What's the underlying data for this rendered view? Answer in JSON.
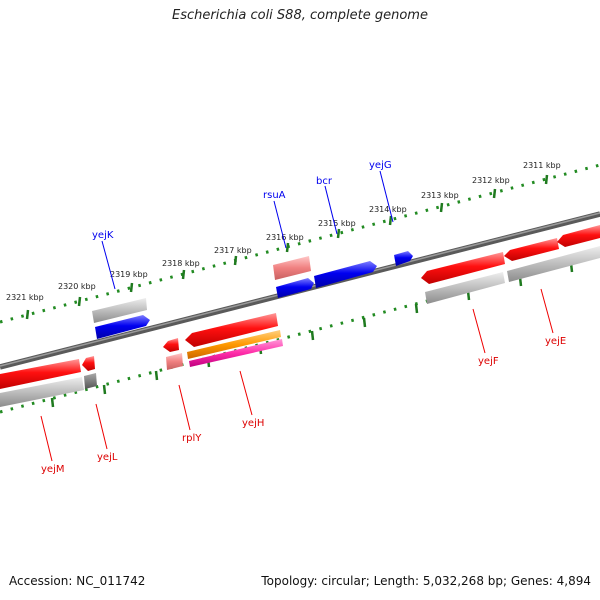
{
  "title": "Escherichia coli S88, complete genome",
  "footer": {
    "accession": "Accession: NC_011742",
    "summary": "Topology: circular; Length: 5,032,268 bp; Genes: 4,894"
  },
  "colors": {
    "forward_gene": "#0000ee",
    "reverse_gene": "#ee0000",
    "rna_gene": "#f08080",
    "pseudo_gene": "#999999",
    "backbone": "#777777",
    "tick_dots": "#228b22"
  },
  "scale_top": [
    {
      "label": "2311 kbp"
    },
    {
      "label": "2312 kbp"
    },
    {
      "label": "2313 kbp"
    },
    {
      "label": "2314 kbp"
    },
    {
      "label": "2315 kbp"
    },
    {
      "label": "2316 kbp"
    },
    {
      "label": "2317 kbp"
    },
    {
      "label": "2318 kbp"
    },
    {
      "label": "2319 kbp"
    },
    {
      "label": "2320 kbp"
    },
    {
      "label": "2321 kbp"
    }
  ],
  "genes_forward": [
    {
      "name": "yejG"
    },
    {
      "name": "bcr"
    },
    {
      "name": "rsuA"
    },
    {
      "name": "yejK"
    }
  ],
  "genes_reverse": [
    {
      "name": "yejE"
    },
    {
      "name": "yejF"
    },
    {
      "name": "yejH"
    },
    {
      "name": "rplY"
    },
    {
      "name": "yejL"
    },
    {
      "name": "yejM"
    }
  ]
}
